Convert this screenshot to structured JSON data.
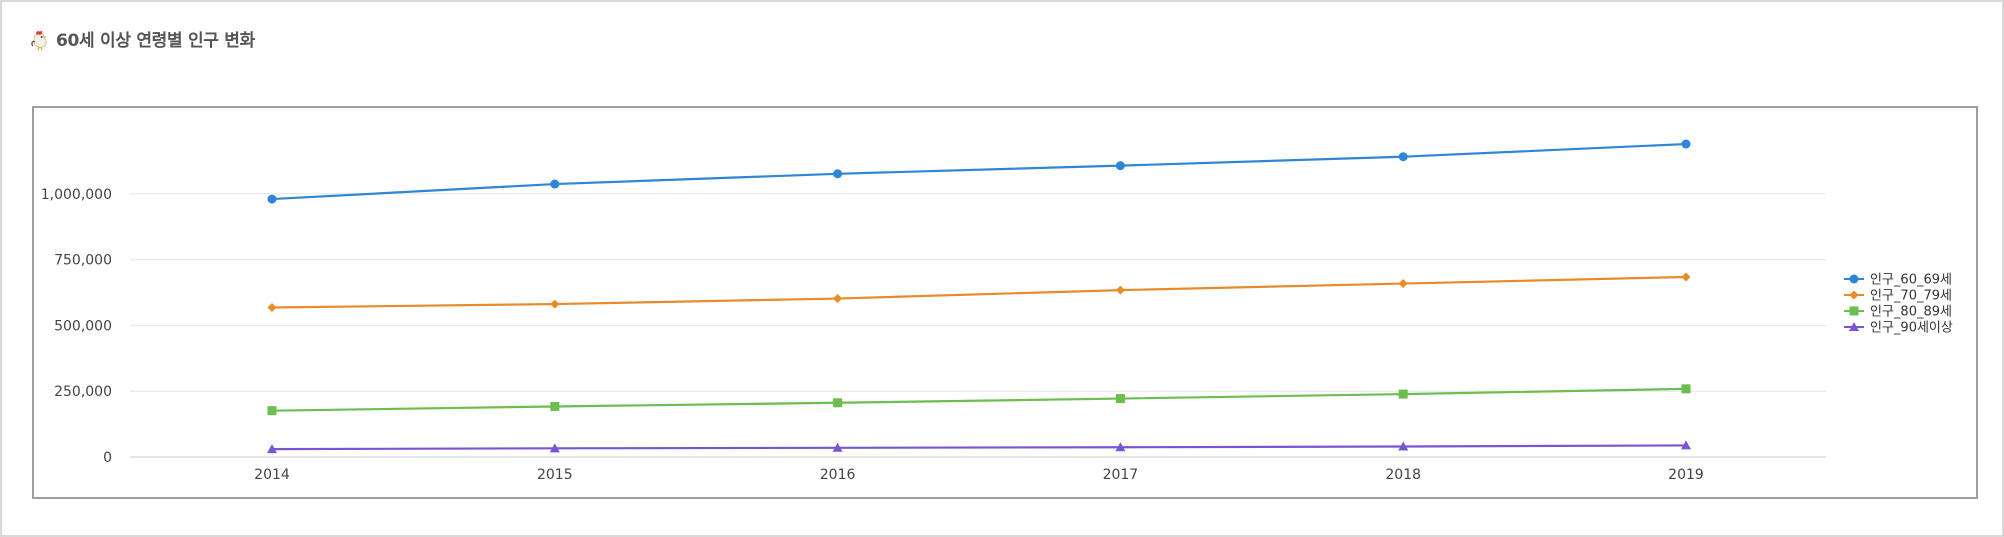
{
  "page": {
    "title": "60세 이상 연령별 인구 변화",
    "title_icon": "rooster-icon"
  },
  "chart_data": {
    "type": "line",
    "title": "60세 이상 연령별 인구 변화",
    "xlabel": "",
    "ylabel": "",
    "categories": [
      "2014",
      "2015",
      "2016",
      "2017",
      "2018",
      "2019"
    ],
    "series": [
      {
        "name": "인구_60_69세",
        "color": "#2f86d6",
        "marker": "circle",
        "values": [
          980000,
          1037000,
          1076000,
          1107000,
          1141000,
          1189000
        ]
      },
      {
        "name": "인구_70_79세",
        "color": "#e98b2a",
        "marker": "diamond",
        "values": [
          568000,
          581000,
          602000,
          634000,
          659000,
          684000
        ]
      },
      {
        "name": "인구_80_89세",
        "color": "#6cbe4f",
        "marker": "square",
        "values": [
          176000,
          192000,
          206000,
          222000,
          239000,
          259000
        ]
      },
      {
        "name": "인구_90세이상",
        "color": "#7a55d2",
        "marker": "triangle",
        "values": [
          30000,
          33000,
          35000,
          37000,
          40000,
          44000
        ]
      }
    ],
    "ylim": [
      0,
      1250000
    ],
    "yticks": [
      0,
      250000,
      500000,
      750000,
      1000000
    ],
    "ytick_labels": [
      "0",
      "250,000",
      "500,000",
      "750,000",
      "1,000,000"
    ],
    "grid": "horizontal",
    "legend_position": "right"
  }
}
